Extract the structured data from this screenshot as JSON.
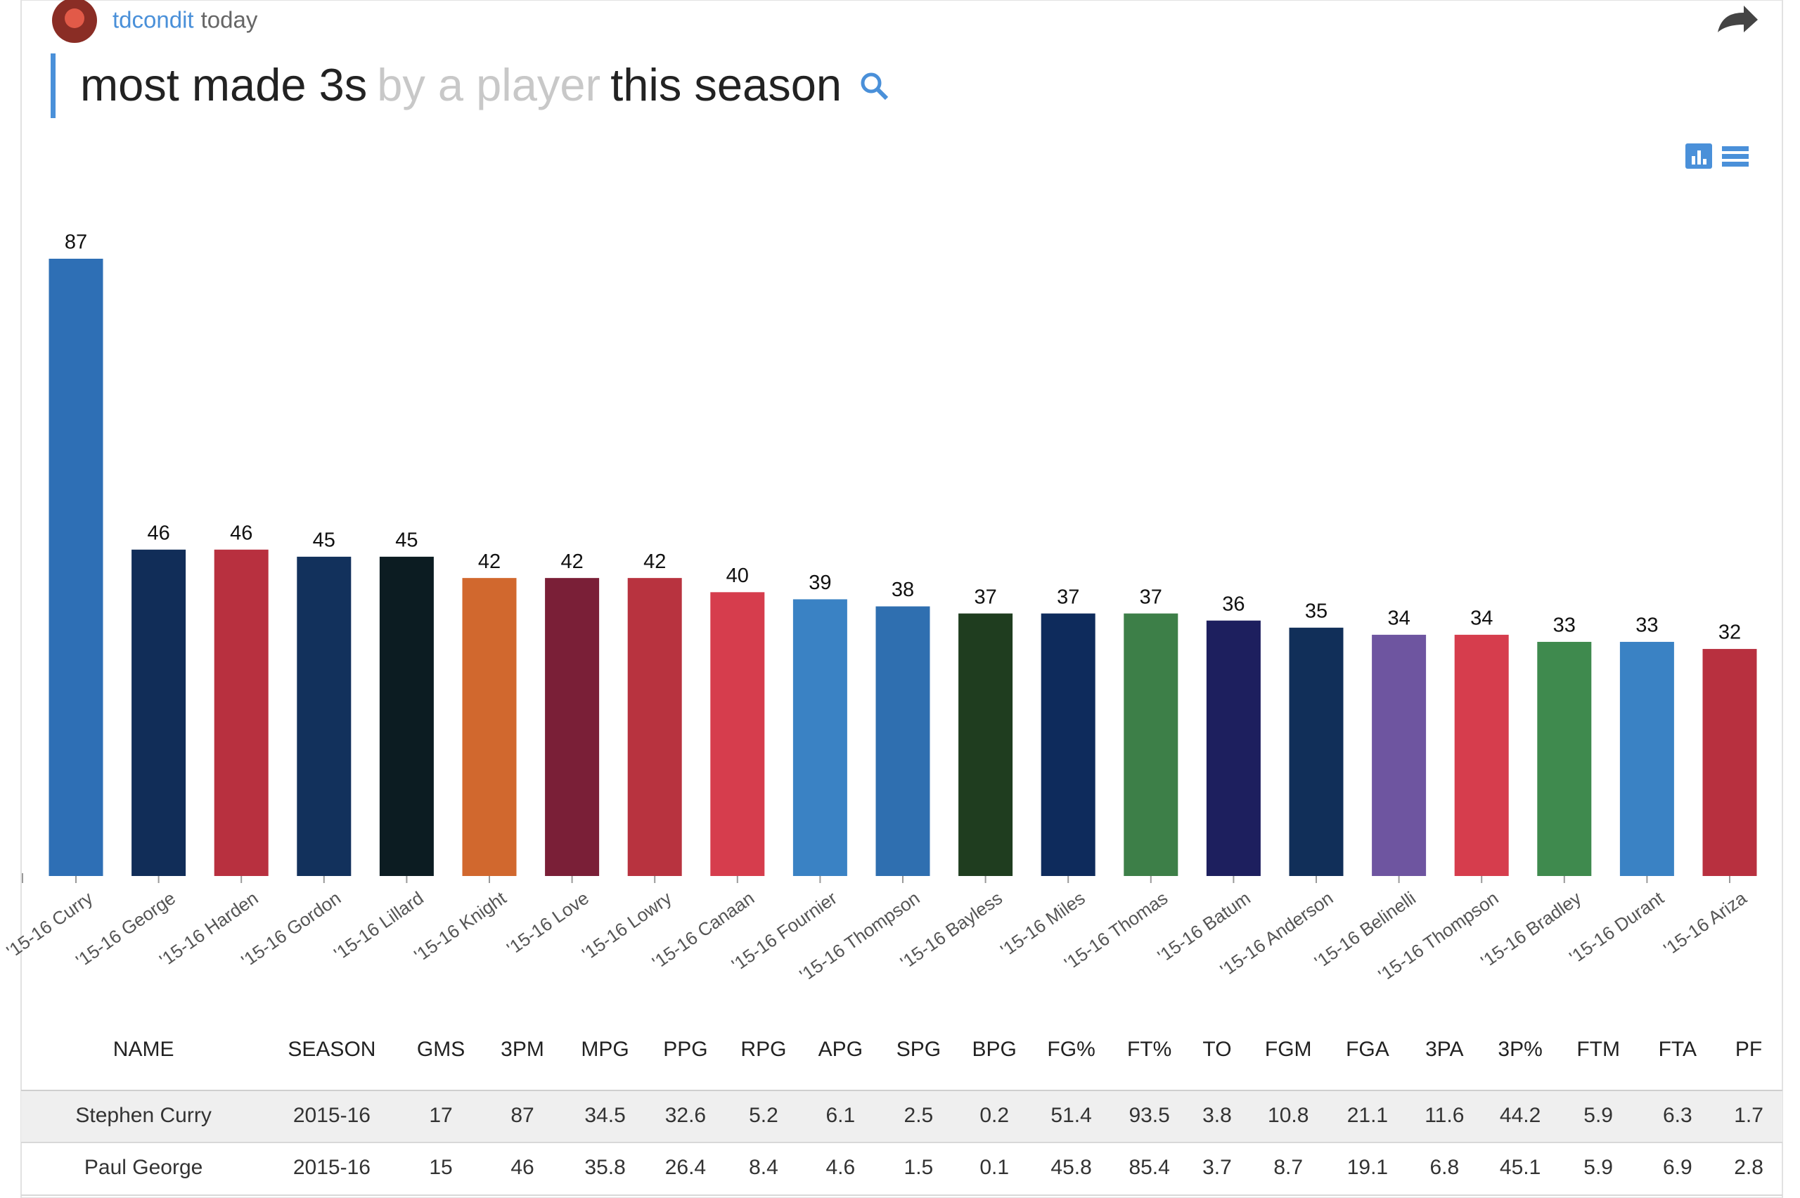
{
  "header": {
    "user": "tdcondit",
    "time": "today",
    "title_parts": [
      "most made 3s",
      "by a player",
      "this season"
    ]
  },
  "chart_data": {
    "type": "bar",
    "categories": [
      "'15-16 Curry",
      "'15-16 George",
      "'15-16 Harden",
      "'15-16 Gordon",
      "'15-16 Lillard",
      "'15-16 Knight",
      "'15-16 Love",
      "'15-16 Lowry",
      "'15-16 Canaan",
      "'15-16 Fournier",
      "'15-16 Thompson",
      "'15-16 Bayless",
      "'15-16 Miles",
      "'15-16 Thomas",
      "'15-16 Batum",
      "'15-16 Anderson",
      "'15-16 Belinelli",
      "'15-16 Thompson",
      "'15-16 Bradley",
      "'15-16 Durant",
      "'15-16 Ariza"
    ],
    "values": [
      87,
      46,
      46,
      45,
      45,
      42,
      42,
      42,
      40,
      39,
      38,
      37,
      37,
      37,
      36,
      35,
      34,
      34,
      33,
      33,
      32
    ],
    "colors": [
      "#2e6fb5",
      "#112d58",
      "#b8303f",
      "#12315c",
      "#0c1c22",
      "#d1682e",
      "#7a1f37",
      "#b8333f",
      "#d63d4d",
      "#3a82c4",
      "#2f6fb0",
      "#1f3d1f",
      "#0e2b5c",
      "#3d7f48",
      "#1d1f5e",
      "#112f59",
      "#6e55a0",
      "#d63d4d",
      "#3f8a4e",
      "#3a82c4",
      "#b8303f"
    ]
  },
  "table": {
    "columns": [
      "NAME",
      "SEASON",
      "GMS",
      "3PM",
      "MPG",
      "PPG",
      "RPG",
      "APG",
      "SPG",
      "BPG",
      "FG%",
      "FT%",
      "TO",
      "FGM",
      "FGA",
      "3PA",
      "3P%",
      "FTM",
      "FTA",
      "PF"
    ],
    "rows": [
      [
        "Stephen Curry",
        "2015-16",
        17,
        87,
        34.5,
        32.6,
        5.2,
        6.1,
        2.5,
        0.2,
        51.4,
        93.5,
        3.8,
        10.8,
        21.1,
        11.6,
        44.2,
        5.9,
        6.3,
        1.7
      ],
      [
        "Paul George",
        "2015-16",
        15,
        46,
        35.8,
        26.4,
        8.4,
        4.6,
        1.5,
        0.1,
        45.8,
        85.4,
        3.7,
        8.7,
        19.1,
        6.8,
        45.1,
        5.9,
        6.9,
        2.8
      ]
    ]
  }
}
